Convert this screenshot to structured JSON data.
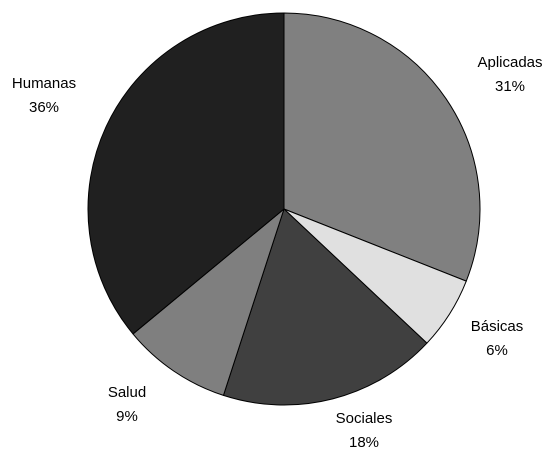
{
  "chart_data": {
    "type": "pie",
    "slices": [
      {
        "label": "Aplicadas",
        "percent_label": "31%",
        "value": 31,
        "color": "#808080"
      },
      {
        "label": "Básicas",
        "percent_label": "6%",
        "value": 6,
        "color": "#e0e0e0"
      },
      {
        "label": "Sociales",
        "percent_label": "18%",
        "value": 18,
        "color": "#404040"
      },
      {
        "label": "Salud",
        "percent_label": "9%",
        "value": 9,
        "color": "#7f7f7f"
      },
      {
        "label": "Humanas",
        "percent_label": "36%",
        "value": 36,
        "color": "#202020"
      }
    ],
    "start_angle_deg": 0,
    "direction": "clockwise",
    "legend": "none"
  }
}
